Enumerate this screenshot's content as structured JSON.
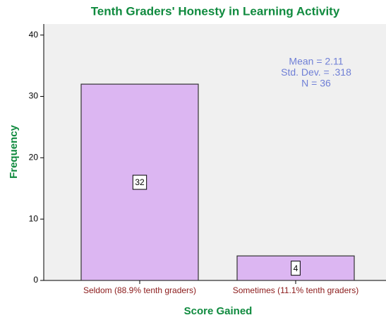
{
  "chart_data": {
    "type": "bar",
    "title": "Tenth Graders' Honesty in Learning Activity",
    "xlabel": "Score Gained",
    "ylabel": "Frequency",
    "categories": [
      "Seldom (88.9% tenth graders)",
      "Sometimes (11.1% tenth graders)"
    ],
    "values": [
      32,
      4
    ],
    "color": "#dcb6f2",
    "ylim": [
      0,
      41.8
    ],
    "yticks": [
      0,
      10,
      20,
      30,
      40
    ],
    "annotations": [
      "Mean = 2.11",
      "Std. Dev. = .318",
      "N = 36"
    ]
  }
}
